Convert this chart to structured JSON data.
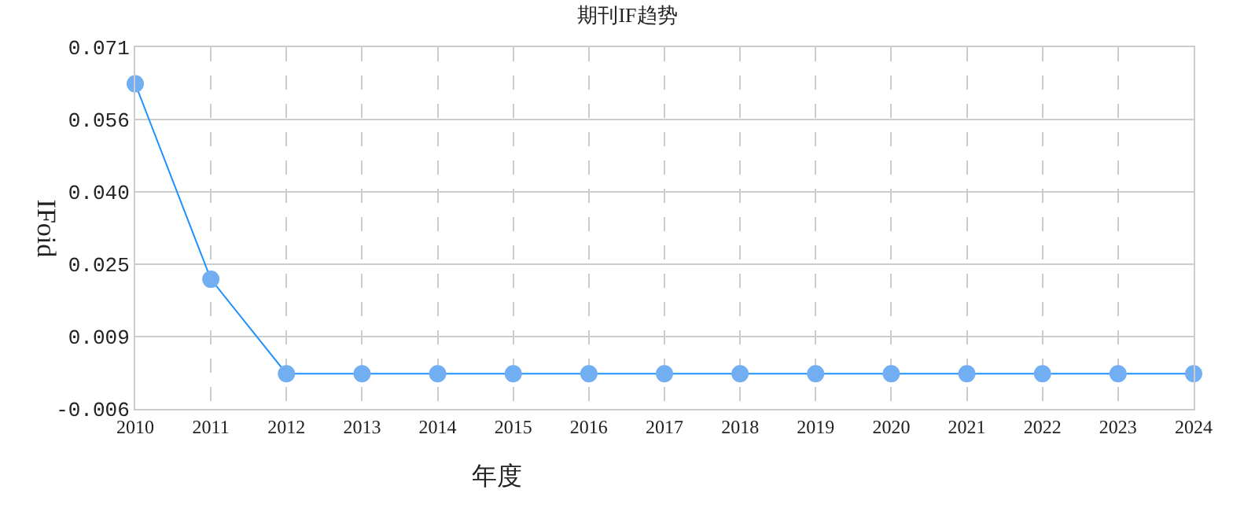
{
  "chart_data": {
    "type": "line",
    "title": "期刊IF趋势",
    "xlabel": "年度",
    "ylabel": "IFoid",
    "categories": [
      "2010",
      "2011",
      "2012",
      "2013",
      "2014",
      "2015",
      "2016",
      "2017",
      "2018",
      "2019",
      "2020",
      "2021",
      "2022",
      "2023",
      "2024"
    ],
    "series": [
      {
        "color": "#1e90ff",
        "values": [
          0.0632,
          0.0216,
          0.0015,
          0.0015,
          0.0015,
          0.0015,
          0.0015,
          0.0015,
          0.0015,
          0.0015,
          0.0015,
          0.0015,
          0.0015,
          0.0015,
          0.0015
        ]
      }
    ],
    "marker": "circle",
    "line_style": "solid",
    "grid": true,
    "legend": false,
    "ylim": [
      -0.006,
      0.071
    ],
    "yticks": [
      {
        "value": -0.006,
        "label": "-0.006"
      },
      {
        "value": 0.0094,
        "label": "0.009"
      },
      {
        "value": 0.0248,
        "label": "0.025"
      },
      {
        "value": 0.0402,
        "label": "0.040"
      },
      {
        "value": 0.0556,
        "label": "0.056"
      },
      {
        "value": 0.071,
        "label": "0.071"
      }
    ]
  }
}
